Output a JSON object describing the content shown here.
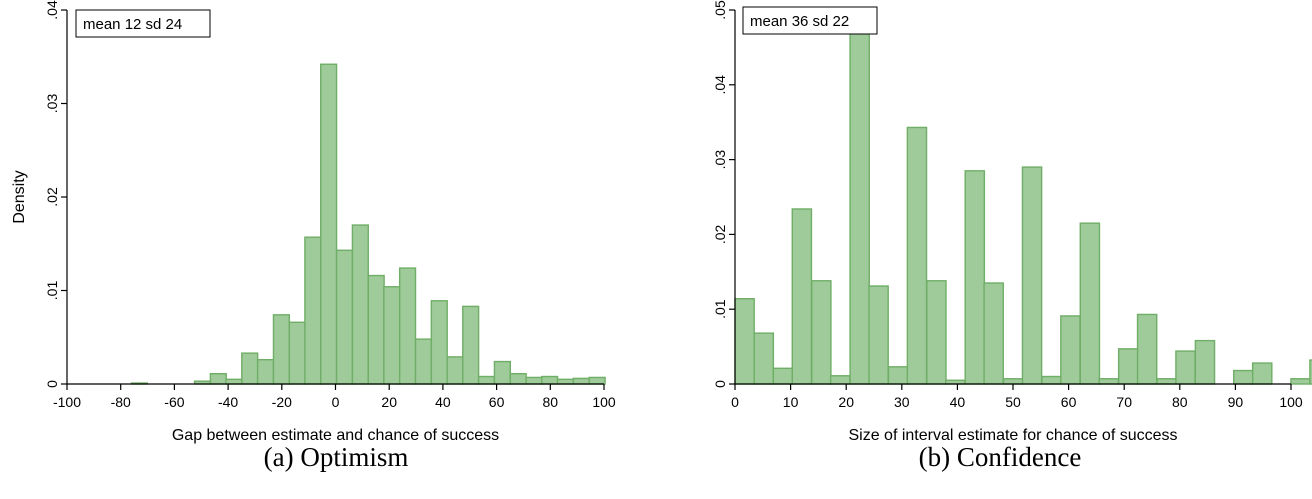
{
  "colors": {
    "bar_fill": "#9fcb9a",
    "bar_edge": "#6fae66"
  },
  "chart_data": [
    {
      "type": "bar",
      "caption": "(a) Optimism",
      "annotation": "mean 12 sd 24",
      "xlabel": "Gap between estimate and chance of success",
      "ylabel": "Density",
      "xlim": [
        -100,
        100
      ],
      "ylim": [
        0,
        0.04
      ],
      "xticks": [
        -100,
        -80,
        -60,
        -40,
        -20,
        0,
        20,
        40,
        60,
        80,
        100
      ],
      "xtick_labels": [
        "-100",
        "-80",
        "-60",
        "-40",
        "-20",
        "0",
        "20",
        "40",
        "60",
        "80",
        "100"
      ],
      "yticks": [
        0,
        0.01,
        0.02,
        0.03,
        0.04
      ],
      "ytick_labels": [
        "0",
        ".01",
        ".02",
        ".03",
        ".04"
      ],
      "bin_width": 5.9,
      "bins": [
        {
          "x": -76.0,
          "y": 0.0001
        },
        {
          "x": -52.5,
          "y": 0.0003
        },
        {
          "x": -46.6,
          "y": 0.0011
        },
        {
          "x": -40.8,
          "y": 0.0005
        },
        {
          "x": -34.9,
          "y": 0.0033
        },
        {
          "x": -29.0,
          "y": 0.0026
        },
        {
          "x": -23.1,
          "y": 0.0074
        },
        {
          "x": -17.2,
          "y": 0.0066
        },
        {
          "x": -11.4,
          "y": 0.0157
        },
        {
          "x": -5.5,
          "y": 0.0342
        },
        {
          "x": 0.4,
          "y": 0.0143
        },
        {
          "x": 6.3,
          "y": 0.017
        },
        {
          "x": 12.2,
          "y": 0.0116
        },
        {
          "x": 18.0,
          "y": 0.0104
        },
        {
          "x": 23.9,
          "y": 0.0124
        },
        {
          "x": 29.8,
          "y": 0.0048
        },
        {
          "x": 35.7,
          "y": 0.0089
        },
        {
          "x": 41.6,
          "y": 0.0029
        },
        {
          "x": 47.4,
          "y": 0.0083
        },
        {
          "x": 53.3,
          "y": 0.0008
        },
        {
          "x": 59.2,
          "y": 0.0024
        },
        {
          "x": 65.1,
          "y": 0.0011
        },
        {
          "x": 71.0,
          "y": 0.0007
        },
        {
          "x": 76.8,
          "y": 0.0008
        },
        {
          "x": 82.7,
          "y": 0.0005
        },
        {
          "x": 88.6,
          "y": 0.0006
        },
        {
          "x": 94.5,
          "y": 0.0007
        }
      ]
    },
    {
      "type": "bar",
      "caption": "(b) Confidence",
      "annotation": "mean 36 sd 22",
      "xlabel": "Size of interval estimate for chance of success",
      "ylabel": "",
      "xlim": [
        0,
        100
      ],
      "ylim": [
        0,
        0.05
      ],
      "xticks": [
        0,
        10,
        20,
        30,
        40,
        50,
        60,
        70,
        80,
        90,
        100
      ],
      "xtick_labels": [
        "0",
        "10",
        "20",
        "30",
        "40",
        "50",
        "60",
        "70",
        "80",
        "90",
        "100"
      ],
      "yticks": [
        0,
        0.01,
        0.02,
        0.03,
        0.04,
        0.05
      ],
      "ytick_labels": [
        "0",
        ".01",
        ".02",
        ".03",
        ".04",
        ".05"
      ],
      "bin_width": 3.45,
      "bins": [
        {
          "x": 0.0,
          "y": 0.0114
        },
        {
          "x": 3.45,
          "y": 0.0068
        },
        {
          "x": 6.9,
          "y": 0.0021
        },
        {
          "x": 10.3,
          "y": 0.0234
        },
        {
          "x": 13.8,
          "y": 0.0138
        },
        {
          "x": 17.2,
          "y": 0.0011
        },
        {
          "x": 20.7,
          "y": 0.0482
        },
        {
          "x": 24.1,
          "y": 0.0131
        },
        {
          "x": 27.6,
          "y": 0.0023
        },
        {
          "x": 31.0,
          "y": 0.0343
        },
        {
          "x": 34.5,
          "y": 0.0138
        },
        {
          "x": 37.9,
          "y": 0.0005
        },
        {
          "x": 41.4,
          "y": 0.0285
        },
        {
          "x": 44.8,
          "y": 0.0135
        },
        {
          "x": 48.3,
          "y": 0.0007
        },
        {
          "x": 51.7,
          "y": 0.029
        },
        {
          "x": 55.2,
          "y": 0.001
        },
        {
          "x": 58.6,
          "y": 0.0091
        },
        {
          "x": 62.1,
          "y": 0.0215
        },
        {
          "x": 65.5,
          "y": 0.0007
        },
        {
          "x": 69.0,
          "y": 0.0047
        },
        {
          "x": 72.4,
          "y": 0.0093
        },
        {
          "x": 75.9,
          "y": 0.0007
        },
        {
          "x": 79.3,
          "y": 0.0044
        },
        {
          "x": 82.8,
          "y": 0.0058
        },
        {
          "x": 89.7,
          "y": 0.0018
        },
        {
          "x": 93.1,
          "y": 0.0028
        },
        {
          "x": 100.0,
          "y": 0.0007
        },
        {
          "x": 103.4,
          "y": 0.0032
        }
      ]
    }
  ]
}
